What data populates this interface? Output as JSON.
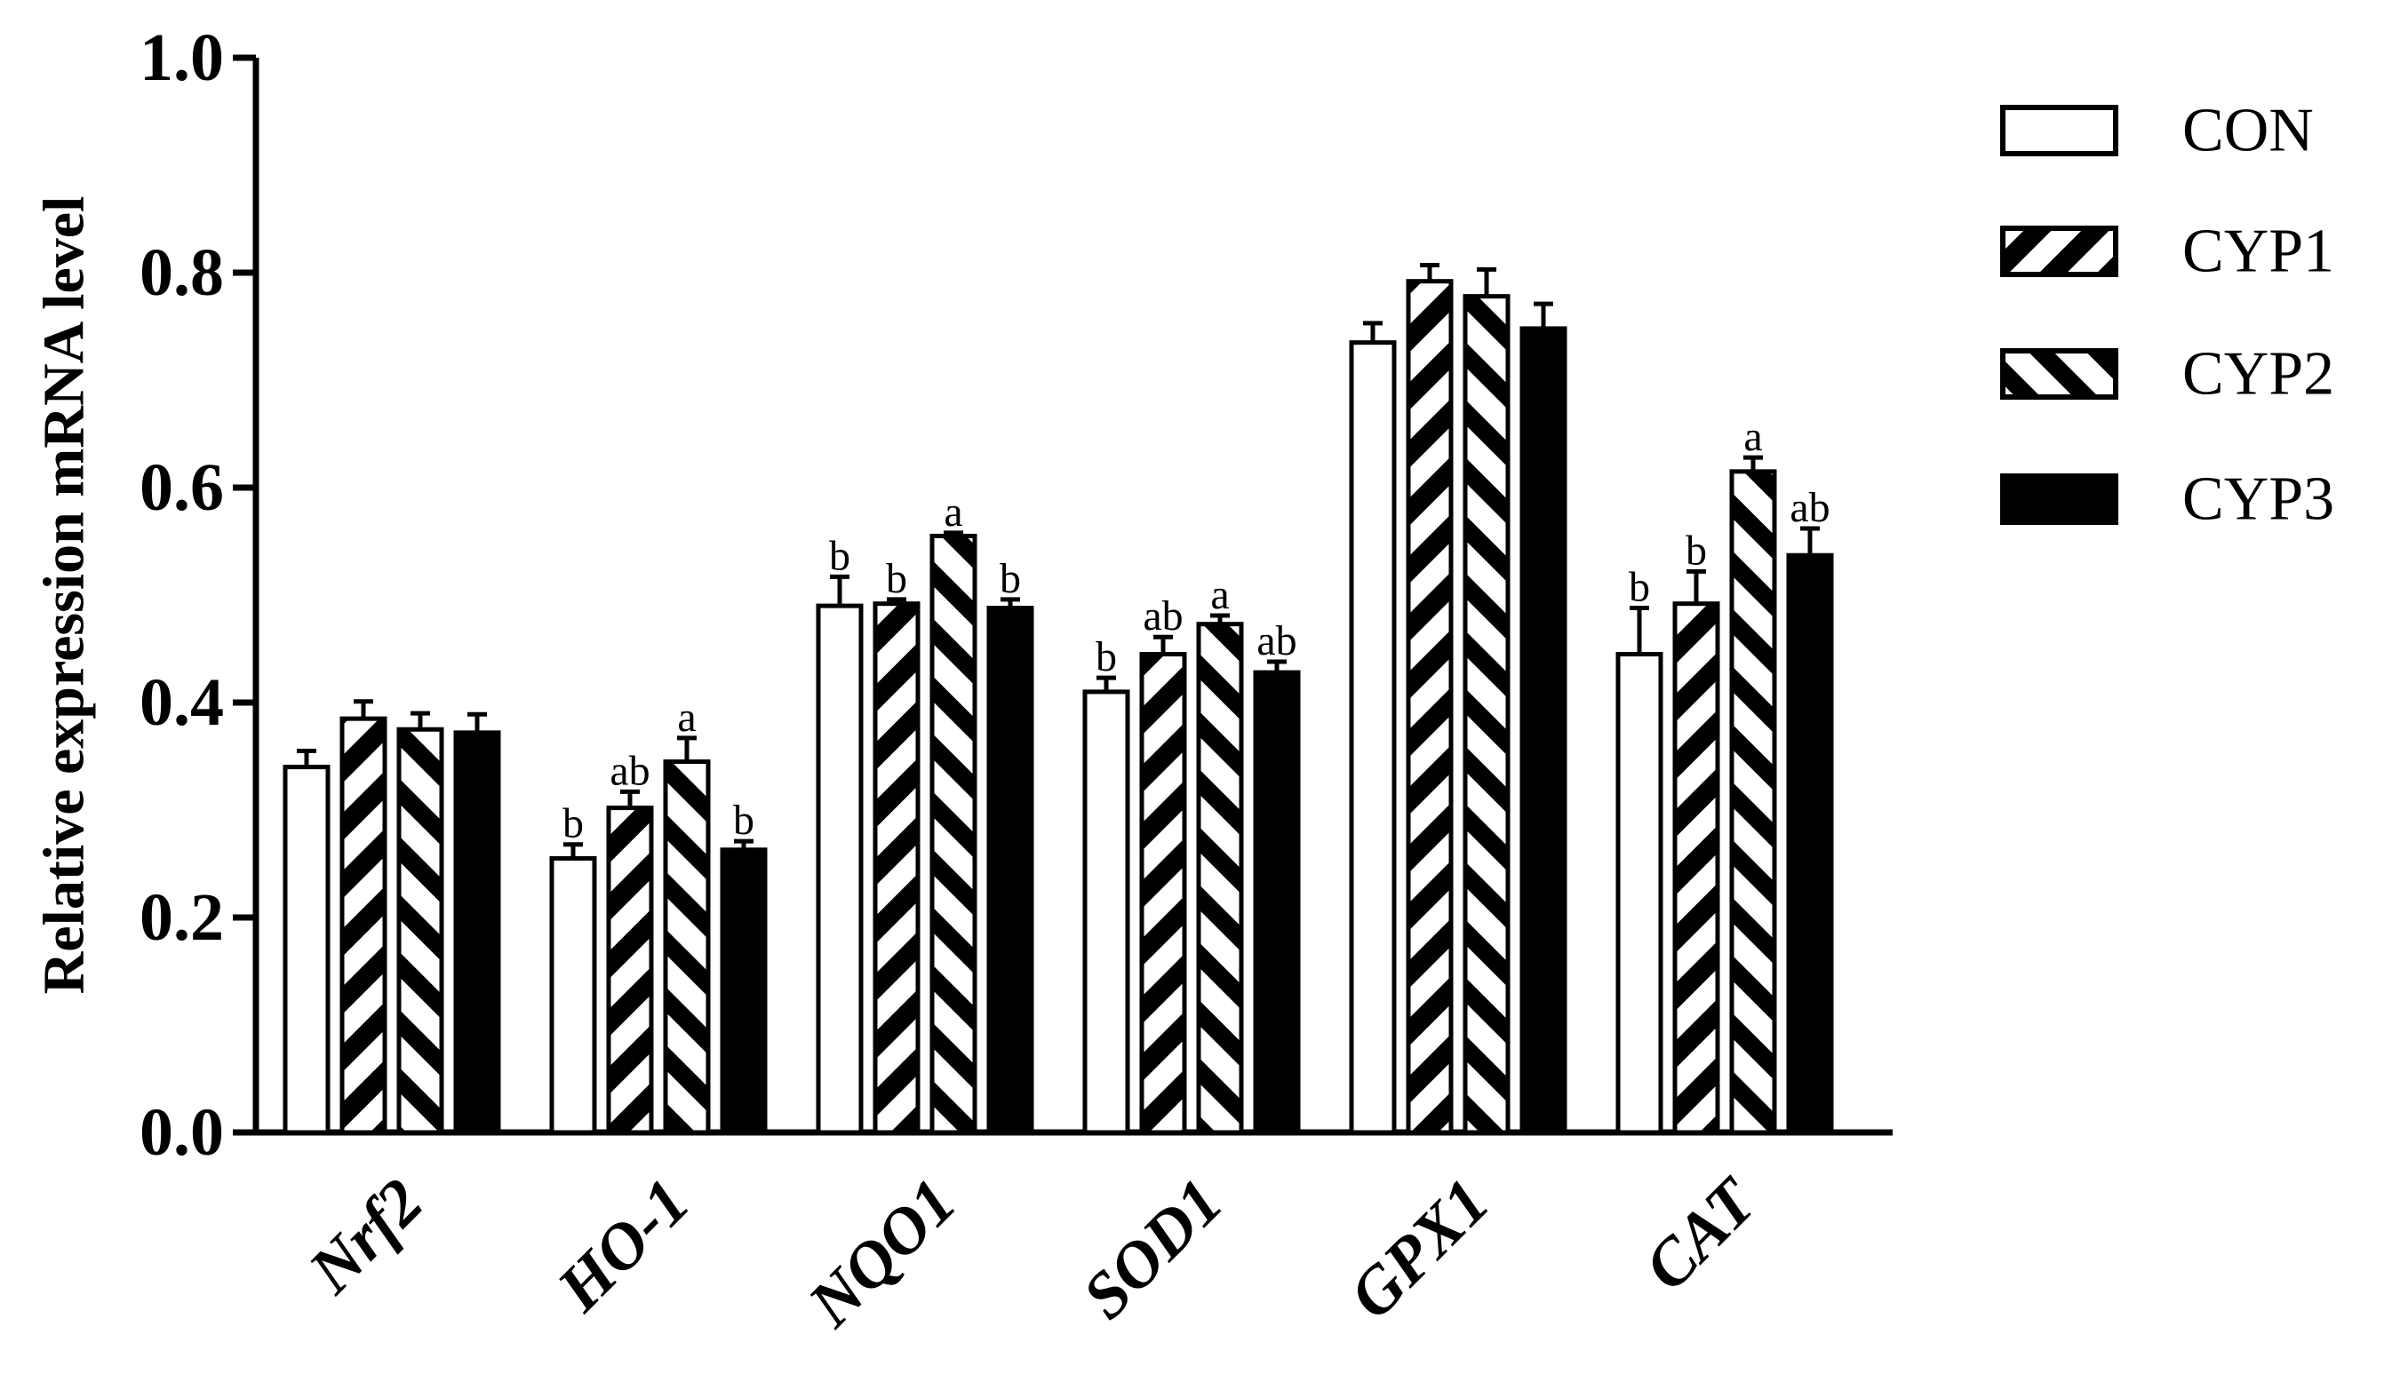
{
  "chart_data": {
    "type": "bar",
    "ylabel": "Relative expression mRNA  level",
    "xlabel": "",
    "ylim": [
      0,
      1.0
    ],
    "yticks": [
      "0.0",
      "0.2",
      "0.4",
      "0.6",
      "0.8",
      "1.0"
    ],
    "grid": false,
    "legend_position": "top-right",
    "categories": [
      "Nrf2",
      "HO-1",
      "NQO1",
      "SOD1",
      "GPX1",
      "CAT"
    ],
    "series": [
      {
        "name": "CON",
        "pattern": "open",
        "values": [
          0.34,
          0.255,
          0.49,
          0.41,
          0.735,
          0.445
        ],
        "errors": [
          0.015,
          0.013,
          0.027,
          0.013,
          0.018,
          0.043
        ],
        "labels": [
          "",
          "b",
          "b",
          "b",
          "",
          "b"
        ]
      },
      {
        "name": "CYP1",
        "pattern": "backslash-hatch",
        "values": [
          0.385,
          0.302,
          0.492,
          0.445,
          0.792,
          0.492
        ],
        "errors": [
          0.016,
          0.015,
          0.004,
          0.016,
          0.015,
          0.03
        ],
        "labels": [
          "",
          "ab",
          "b",
          "ab",
          "",
          "b"
        ]
      },
      {
        "name": "CYP2",
        "pattern": "slash-hatch",
        "values": [
          0.375,
          0.345,
          0.555,
          0.473,
          0.778,
          0.615
        ],
        "errors": [
          0.015,
          0.022,
          0.003,
          0.008,
          0.025,
          0.013
        ],
        "labels": [
          "",
          "a",
          "a",
          "a",
          "",
          "a"
        ]
      },
      {
        "name": "CYP3",
        "pattern": "solid",
        "values": [
          0.372,
          0.263,
          0.488,
          0.428,
          0.748,
          0.537
        ],
        "errors": [
          0.017,
          0.008,
          0.008,
          0.01,
          0.023,
          0.025
        ],
        "labels": [
          "",
          "b",
          "b",
          "ab",
          "",
          "ab"
        ]
      }
    ]
  },
  "colors": {
    "ink": "#000000",
    "background": "#ffffff"
  }
}
